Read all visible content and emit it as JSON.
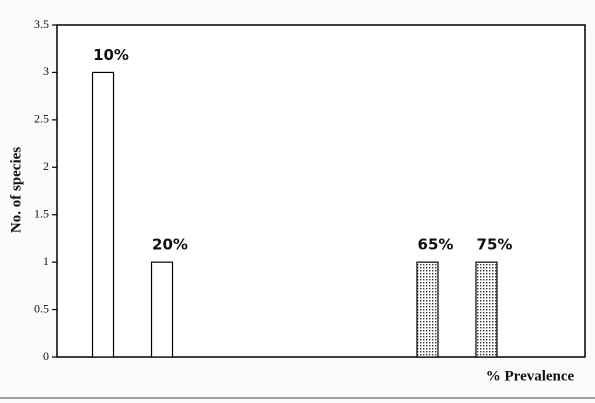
{
  "chart_data": {
    "type": "bar",
    "ylabel": "No. of species",
    "xlabel": "% Prevalence",
    "x": [
      {
        "value": 10,
        "label": "10%"
      },
      {
        "value": 20,
        "label": "20%"
      },
      {
        "value": 65,
        "label": "65%"
      },
      {
        "value": 75,
        "label": "75%"
      }
    ],
    "values": [
      3,
      1,
      1,
      1
    ],
    "patterns": [
      "none",
      "none",
      "dots",
      "dots"
    ],
    "color": "#000000",
    "xlim": [
      2.2,
      91.7
    ],
    "ylim": [
      0,
      3.5
    ],
    "yticks": [
      0,
      0.5,
      1,
      1.5,
      2,
      2.5,
      3,
      3.5
    ]
  }
}
